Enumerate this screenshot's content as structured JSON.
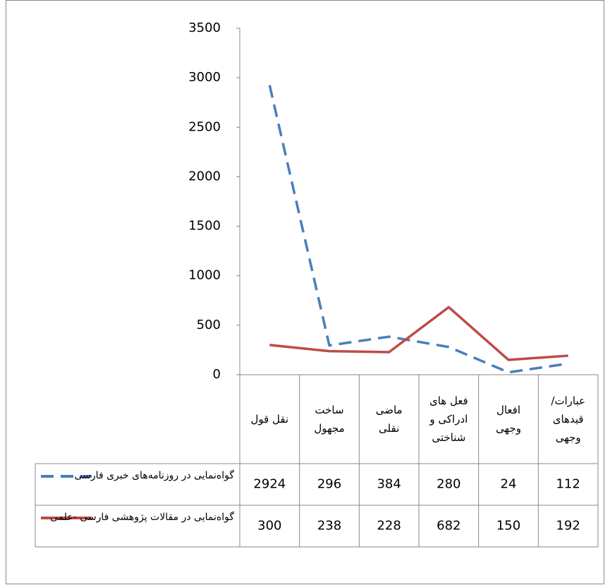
{
  "chart_data": {
    "type": "line",
    "categories": [
      "نقل قول",
      "ساخت\nمجهول",
      "ماضی\nنقلی",
      "فعل های\nادراکی و\nشناختی",
      "افعال\nوجهی",
      "عبارات/\nقیدهای\nوجهی"
    ],
    "series": [
      {
        "name": "گواه‌نمایی در روزنامه‌های خبری فارسی",
        "color": "#4a7ebb",
        "dashed": true,
        "values": [
          2924,
          296,
          384,
          280,
          24,
          112
        ]
      },
      {
        "name": "گواه‌نمایی در مقالات پژوهشی فارسی -علمی",
        "color": "#be4b48",
        "dashed": false,
        "values": [
          300,
          238,
          228,
          682,
          150,
          192
        ]
      }
    ],
    "ylim": [
      0,
      3500
    ],
    "yticks": [
      0,
      500,
      1000,
      1500,
      2000,
      2500,
      3000,
      3500
    ],
    "grid": false
  }
}
